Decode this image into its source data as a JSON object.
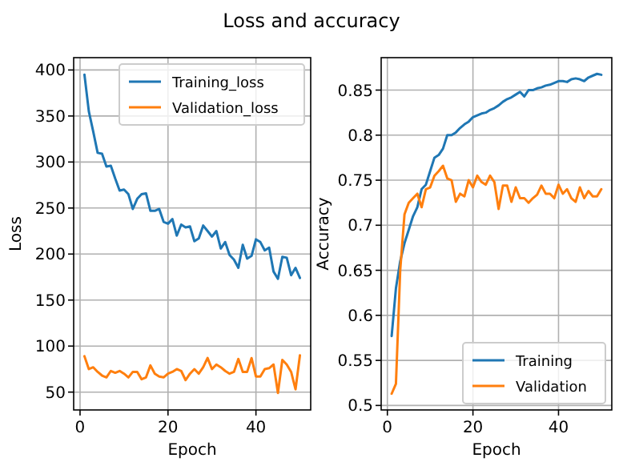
{
  "chart_data": [
    {
      "type": "line",
      "title": "Loss and accuracy",
      "xlabel": "Epoch",
      "ylabel": "Loss",
      "x": [
        1,
        2,
        3,
        4,
        5,
        6,
        7,
        8,
        9,
        10,
        11,
        12,
        13,
        14,
        15,
        16,
        17,
        18,
        19,
        20,
        21,
        22,
        23,
        24,
        25,
        26,
        27,
        28,
        29,
        30,
        31,
        32,
        33,
        34,
        35,
        36,
        37,
        38,
        39,
        40,
        41,
        42,
        43,
        44,
        45,
        46,
        47,
        48,
        49,
        50
      ],
      "xlim": [
        -1.45,
        52.45
      ],
      "xticks": [
        0,
        20,
        40
      ],
      "ylim": [
        30.6,
        413.4
      ],
      "yticks": [
        50,
        100,
        150,
        200,
        250,
        300,
        350,
        400
      ],
      "grid": true,
      "legend": "top right",
      "series": [
        {
          "name": "Training_loss",
          "color": "#1f77b4",
          "values": [
            395,
            355,
            333,
            310,
            309,
            295,
            296,
            282,
            269,
            270,
            265,
            249,
            260,
            265,
            266,
            247,
            247,
            249,
            235,
            233,
            238,
            220,
            232,
            229,
            230,
            214,
            217,
            231,
            225,
            219,
            225,
            206,
            213,
            199,
            194,
            185,
            210,
            195,
            198,
            216,
            213,
            204,
            207,
            181,
            173,
            197,
            196,
            177,
            185,
            174
          ]
        },
        {
          "name": "Validation_loss",
          "color": "#ff7f0e",
          "values": [
            89,
            75,
            77,
            72,
            68,
            66,
            73,
            71,
            73,
            70,
            66,
            72,
            72,
            64,
            66,
            79,
            70,
            67,
            66,
            70,
            72,
            75,
            73,
            63,
            70,
            75,
            70,
            77,
            87,
            75,
            80,
            77,
            73,
            70,
            72,
            86,
            72,
            72,
            87,
            67,
            67,
            75,
            76,
            80,
            49,
            85,
            80,
            72,
            53,
            90
          ]
        }
      ]
    },
    {
      "type": "line",
      "xlabel": "Epoch",
      "ylabel": "Accuracy",
      "x": [
        1,
        2,
        3,
        4,
        5,
        6,
        7,
        8,
        9,
        10,
        11,
        12,
        13,
        14,
        15,
        16,
        17,
        18,
        19,
        20,
        21,
        22,
        23,
        24,
        25,
        26,
        27,
        28,
        29,
        30,
        31,
        32,
        33,
        34,
        35,
        36,
        37,
        38,
        39,
        40,
        41,
        42,
        43,
        44,
        45,
        46,
        47,
        48,
        49,
        50
      ],
      "xlim": [
        -1.45,
        52.45
      ],
      "xticks": [
        0,
        20,
        40
      ],
      "ylim": [
        0.495,
        0.886
      ],
      "yticks": [
        0.5,
        0.55,
        0.6,
        0.65,
        0.7,
        0.75,
        0.8,
        0.85
      ],
      "grid": true,
      "legend": "bottom right",
      "series": [
        {
          "name": "Training",
          "color": "#1f77b4",
          "values": [
            0.577,
            0.63,
            0.66,
            0.68,
            0.695,
            0.71,
            0.72,
            0.74,
            0.745,
            0.76,
            0.775,
            0.778,
            0.785,
            0.8,
            0.8,
            0.803,
            0.808,
            0.812,
            0.815,
            0.82,
            0.822,
            0.824,
            0.825,
            0.828,
            0.83,
            0.833,
            0.837,
            0.84,
            0.842,
            0.845,
            0.848,
            0.843,
            0.85,
            0.85,
            0.852,
            0.853,
            0.855,
            0.856,
            0.858,
            0.86,
            0.86,
            0.859,
            0.862,
            0.863,
            0.862,
            0.86,
            0.864,
            0.866,
            0.868,
            0.867
          ]
        },
        {
          "name": "Validation",
          "color": "#ff7f0e",
          "values": [
            0.513,
            0.524,
            0.65,
            0.712,
            0.725,
            0.73,
            0.735,
            0.72,
            0.74,
            0.742,
            0.755,
            0.76,
            0.766,
            0.752,
            0.75,
            0.726,
            0.735,
            0.732,
            0.75,
            0.742,
            0.755,
            0.748,
            0.745,
            0.755,
            0.748,
            0.718,
            0.744,
            0.744,
            0.726,
            0.742,
            0.73,
            0.73,
            0.725,
            0.73,
            0.734,
            0.744,
            0.735,
            0.735,
            0.73,
            0.745,
            0.735,
            0.74,
            0.73,
            0.726,
            0.742,
            0.73,
            0.738,
            0.732,
            0.732,
            0.74
          ]
        }
      ]
    }
  ]
}
